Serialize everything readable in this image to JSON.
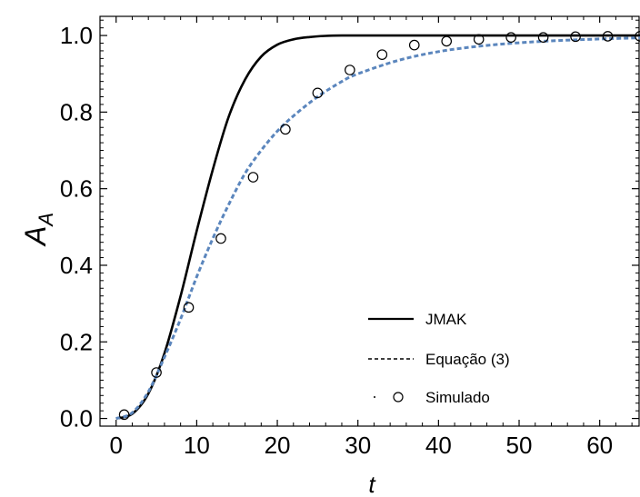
{
  "chart_data": {
    "type": "line",
    "xlabel": "t",
    "ylabel_main": "A",
    "ylabel_sub": "A",
    "xlim": [
      -2,
      65
    ],
    "ylim": [
      -0.02,
      1.05
    ],
    "xticks": [
      0,
      10,
      20,
      30,
      40,
      50,
      60
    ],
    "xtick_labels": [
      "0",
      "10",
      "20",
      "30",
      "40",
      "50",
      "60"
    ],
    "yticks": [
      0.0,
      0.2,
      0.4,
      0.6,
      0.8,
      1.0
    ],
    "ytick_labels": [
      "0.0",
      "0.2",
      "0.4",
      "0.6",
      "0.8",
      "1.0"
    ],
    "grid": false,
    "legend_position": "bottom-right",
    "series": [
      {
        "name": "JMAK",
        "style": "solid",
        "color": "#000000",
        "x": [
          0,
          2,
          4,
          6,
          8,
          10,
          12,
          14,
          16,
          18,
          20,
          22,
          24,
          26,
          28,
          30,
          35,
          40,
          50,
          60,
          65
        ],
        "y": [
          0.0,
          0.012,
          0.065,
          0.17,
          0.32,
          0.49,
          0.65,
          0.79,
          0.885,
          0.945,
          0.976,
          0.99,
          0.996,
          0.999,
          1.0,
          1.0,
          1.0,
          1.0,
          1.0,
          1.0,
          1.0
        ]
      },
      {
        "name": "Equação (3)",
        "style": "dashed",
        "color": "#5b86bd",
        "x": [
          0,
          2,
          4,
          6,
          8,
          10,
          12,
          14,
          16,
          18,
          20,
          22,
          25,
          28,
          30,
          35,
          40,
          45,
          50,
          55,
          60,
          65
        ],
        "y": [
          0.0,
          0.015,
          0.07,
          0.16,
          0.26,
          0.37,
          0.47,
          0.56,
          0.64,
          0.7,
          0.75,
          0.79,
          0.84,
          0.88,
          0.9,
          0.935,
          0.958,
          0.972,
          0.981,
          0.987,
          0.991,
          0.994
        ]
      },
      {
        "name": "Simulado",
        "style": "markers",
        "color": "#000000",
        "x": [
          1,
          5,
          9,
          13,
          17,
          21,
          25,
          29,
          33,
          37,
          41,
          45,
          49,
          53,
          57,
          61,
          65
        ],
        "y": [
          0.01,
          0.12,
          0.29,
          0.47,
          0.63,
          0.755,
          0.85,
          0.91,
          0.95,
          0.975,
          0.985,
          0.99,
          0.995,
          0.995,
          0.997,
          0.998,
          0.998
        ]
      }
    ]
  }
}
